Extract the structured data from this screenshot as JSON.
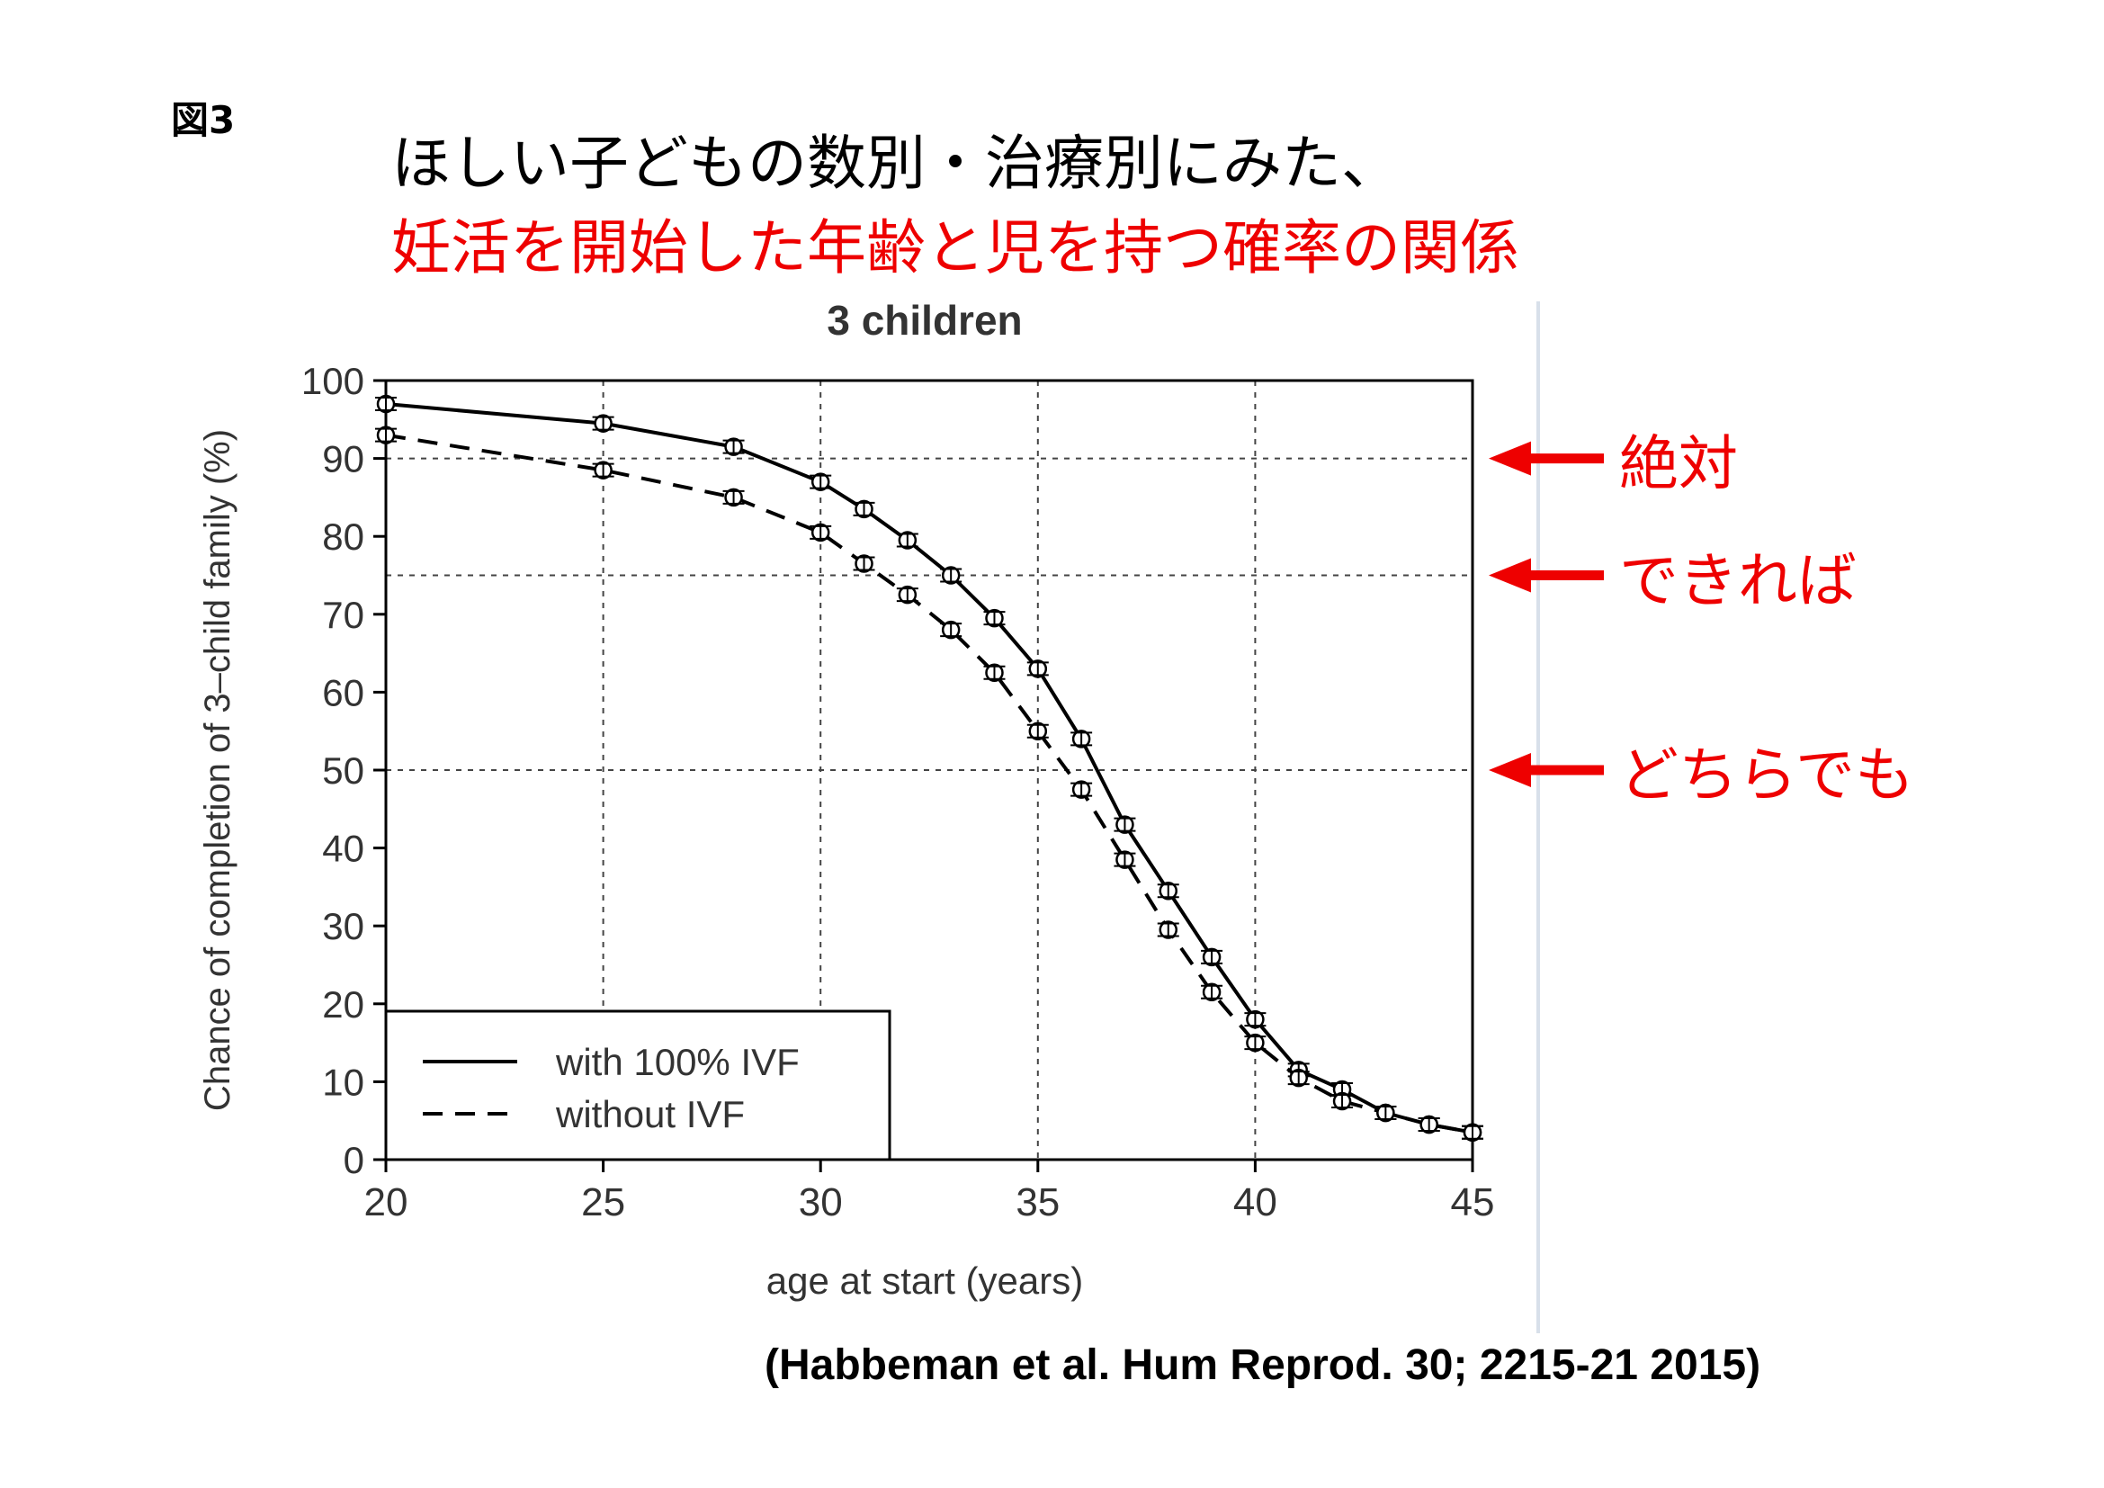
{
  "figure_label": "図3",
  "title_line1": "ほしい子どもの数別・治療別にみた、",
  "title_line2": "妊活を開始した年齢と児を持つ確率の関係",
  "citation": "(Habbeman et al. Hum Reprod. 30; 2215-21 2015)",
  "colors": {
    "title_highlight": "#ee0000",
    "arrows": "#ee0000",
    "curve": "#000000"
  },
  "annotations": [
    {
      "label": "絶対",
      "y": 90
    },
    {
      "label": "できれば",
      "y": 75
    },
    {
      "label": "どちらでも",
      "y": 50
    }
  ],
  "chart_data": {
    "type": "line",
    "title": "3 children",
    "xlabel": "age at start (years)",
    "ylabel": "Chance of completion of 3–child family (%)",
    "xlim": [
      20,
      45
    ],
    "ylim": [
      0,
      100
    ],
    "xticks": [
      20,
      25,
      30,
      35,
      40,
      45
    ],
    "yticks": [
      0,
      10,
      20,
      30,
      40,
      50,
      60,
      70,
      80,
      90,
      100
    ],
    "vertical_gridlines": [
      25,
      30,
      35,
      40
    ],
    "horizontal_gridlines": [
      50,
      75,
      90
    ],
    "grid": "dotted",
    "legend_position": "bottom-left",
    "series": [
      {
        "name": "with 100% IVF",
        "style": "solid",
        "x": [
          20,
          25,
          28,
          30,
          31,
          32,
          33,
          34,
          35,
          36,
          37,
          38,
          39,
          40,
          41,
          42,
          43,
          44,
          45
        ],
        "y": [
          97,
          94.5,
          91.5,
          87,
          83.5,
          79.5,
          75,
          69.5,
          63,
          54,
          43,
          34.5,
          26,
          18,
          11.5,
          9,
          6,
          4.5,
          3.5
        ]
      },
      {
        "name": "without IVF",
        "style": "dashed",
        "x": [
          20,
          25,
          28,
          30,
          31,
          32,
          33,
          34,
          35,
          36,
          37,
          38,
          39,
          40,
          41,
          42,
          43,
          44,
          45
        ],
        "y": [
          93,
          88.5,
          85,
          80.5,
          76.5,
          72.5,
          68,
          62.5,
          55,
          47.5,
          38.5,
          29.5,
          21.5,
          15,
          10.5,
          7.5,
          6,
          4.5,
          3.5
        ]
      }
    ]
  }
}
